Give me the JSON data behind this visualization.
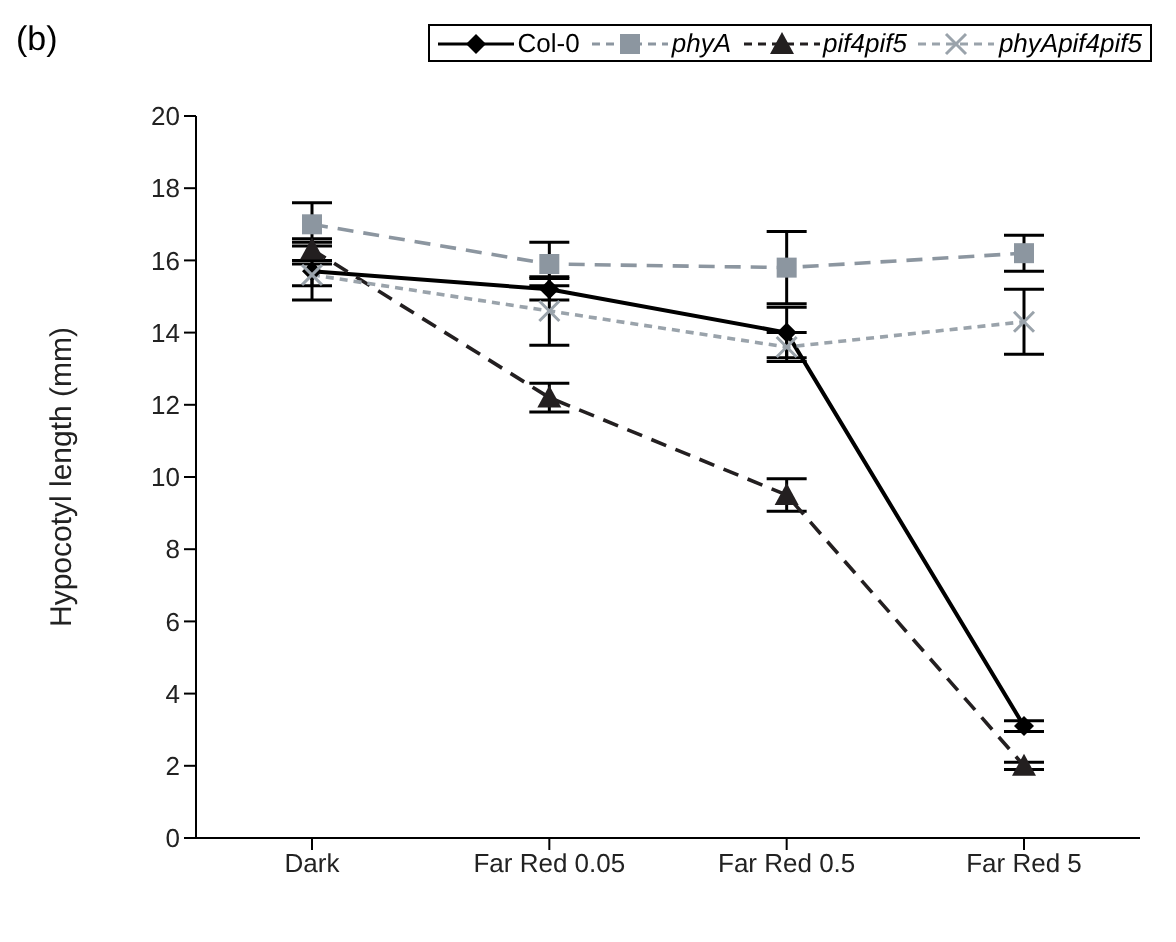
{
  "chart_data": {
    "type": "line",
    "title": "(b)",
    "ylabel": "Hypocotyl length (mm)",
    "categories": [
      "Dark",
      "Far Red 0.05",
      "Far Red 0.5",
      "Far Red 5"
    ],
    "ylim": [
      0,
      20
    ],
    "yticks": [
      0,
      2,
      4,
      6,
      8,
      10,
      12,
      14,
      16,
      18,
      20
    ],
    "legend": "top",
    "series": [
      {
        "name": "Col-0",
        "color": "#000000",
        "marker": "diamond",
        "line_style": "solid",
        "values": [
          15.7,
          15.2,
          14.0,
          3.1
        ],
        "errors": [
          0.8,
          0.3,
          0.7,
          0.15
        ]
      },
      {
        "name": "phyA",
        "color": "#8c96a0",
        "marker": "square",
        "line_style": "dashed",
        "values": [
          17.0,
          15.9,
          15.8,
          16.2
        ],
        "errors": [
          0.6,
          0.6,
          1.0,
          0.5
        ]
      },
      {
        "name": "pif4pif5",
        "color": "#231f20",
        "marker": "triangle",
        "line_style": "dashed",
        "values": [
          16.3,
          12.2,
          9.5,
          2.0
        ],
        "errors": [
          0.3,
          0.4,
          0.45,
          0.1
        ]
      },
      {
        "name": "phyApif4pif5",
        "color": "#9aa3ab",
        "marker": "cross",
        "line_style": "dotted",
        "values": [
          15.6,
          14.6,
          13.6,
          14.3
        ],
        "errors": [
          0.3,
          0.95,
          0.4,
          0.9
        ]
      }
    ]
  }
}
